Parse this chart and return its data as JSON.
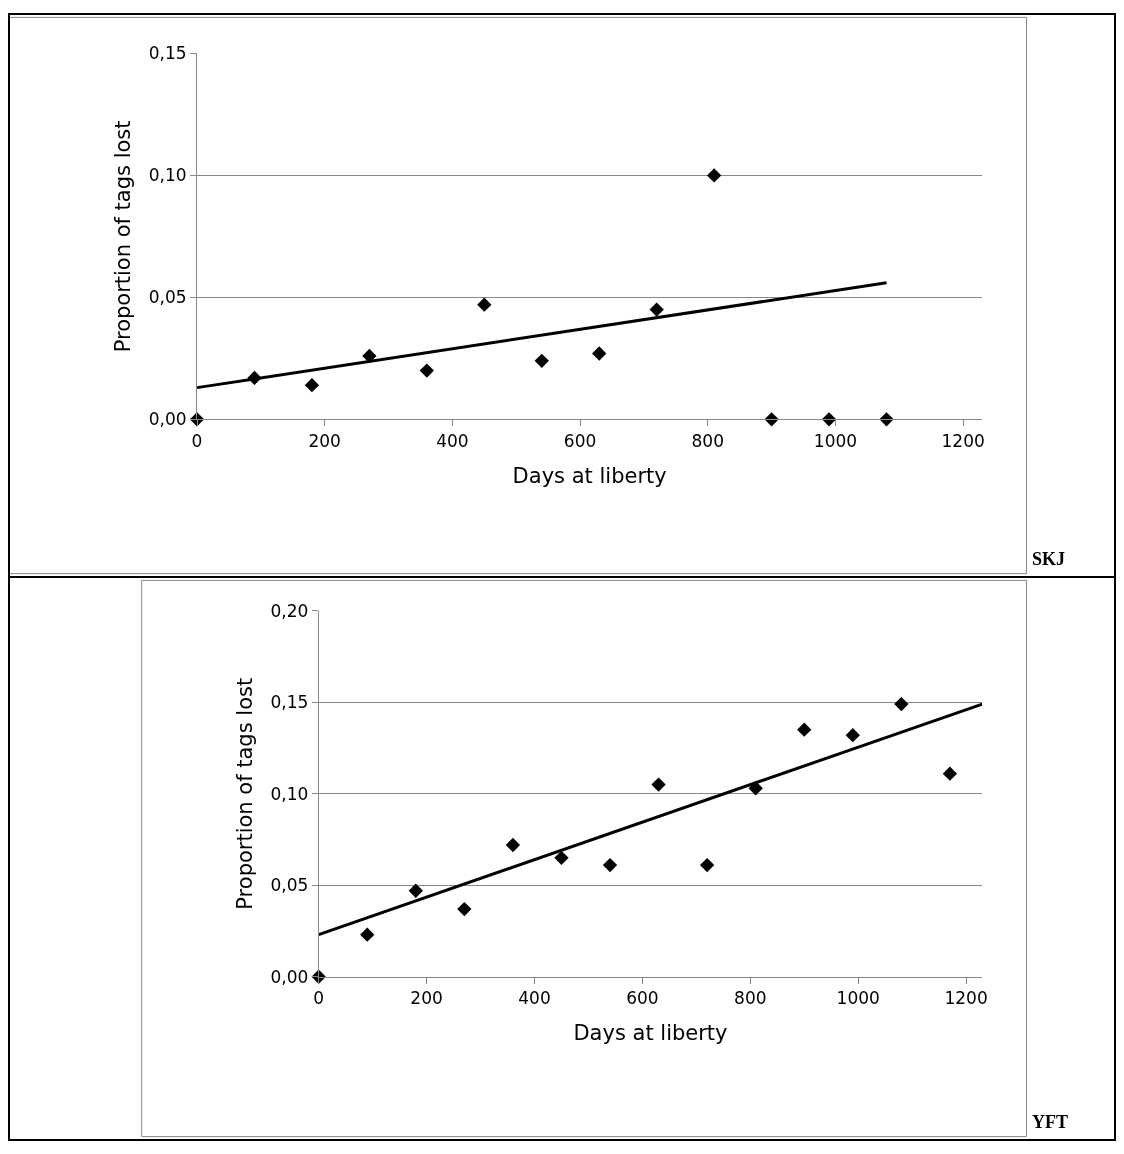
{
  "chart_data": [
    {
      "type": "scatter",
      "xlabel": "Days at liberty",
      "ylabel": "Proportion of tags lost",
      "annotations": [
        "SKJ"
      ],
      "x": [
        0,
        90,
        180,
        270,
        360,
        450,
        540,
        630,
        720,
        810,
        900,
        990,
        1080
      ],
      "series": [
        {
          "color": "#000000",
          "marker": "diamond",
          "values": [
            0,
            0.017,
            0.014,
            0.026,
            0.02,
            0.047,
            0.024,
            0.027,
            0.045,
            0.1,
            0,
            0,
            0
          ]
        },
        {
          "type": "line",
          "color": "#000000",
          "x": [
            0,
            1080
          ],
          "values": [
            0.013,
            0.056
          ]
        }
      ],
      "xlim": [
        0,
        1230
      ],
      "xticks": [
        0,
        200,
        400,
        600,
        800,
        1000,
        1200
      ],
      "ylim": [
        0,
        0.15
      ],
      "yticks": [
        {
          "value": 0,
          "label": "0,00"
        },
        {
          "value": 0.05,
          "label": "0,05"
        },
        {
          "value": 0.1,
          "label": "0,10"
        },
        {
          "value": 0.15,
          "label": "0,15"
        }
      ],
      "grid": "y",
      "legend": false
    },
    {
      "type": "scatter",
      "xlabel": "Days at liberty",
      "ylabel": "Proportion of tags lost",
      "annotations": [
        "YFT"
      ],
      "x": [
        0,
        90,
        180,
        270,
        360,
        450,
        540,
        630,
        720,
        810,
        900,
        990,
        1080,
        1170
      ],
      "series": [
        {
          "color": "#000000",
          "marker": "diamond",
          "values": [
            0,
            0.023,
            0.047,
            0.037,
            0.072,
            0.065,
            0.061,
            0.105,
            0.061,
            0.103,
            0.135,
            0.132,
            0.149,
            0.111
          ]
        },
        {
          "type": "line",
          "color": "#000000",
          "x": [
            0,
            1230
          ],
          "values": [
            0.023,
            0.149
          ]
        }
      ],
      "xlim": [
        0,
        1230
      ],
      "xticks": [
        0,
        200,
        400,
        600,
        800,
        1000,
        1200
      ],
      "ylim": [
        0,
        0.2
      ],
      "yticks": [
        {
          "value": 0,
          "label": "0,00"
        },
        {
          "value": 0.05,
          "label": "0,05"
        },
        {
          "value": 0.1,
          "label": "0,10"
        },
        {
          "value": 0.15,
          "label": "0,15"
        },
        {
          "value": 0.2,
          "label": "0,20"
        }
      ],
      "grid": "y",
      "legend": false
    }
  ]
}
